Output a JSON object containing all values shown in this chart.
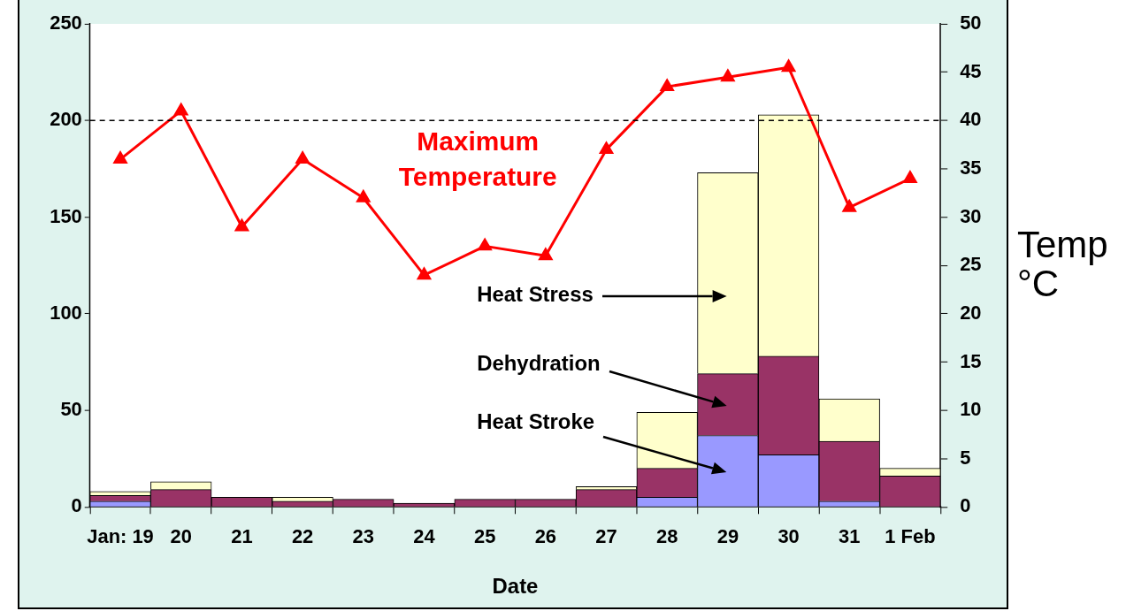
{
  "chart_data": {
    "type": "bar",
    "stacked": true,
    "xlabel": "Date",
    "y2label": "Temp °C",
    "categories": [
      "Jan: 19",
      "20",
      "21",
      "22",
      "23",
      "24",
      "25",
      "26",
      "27",
      "28",
      "29",
      "30",
      "31",
      "1 Feb"
    ],
    "series": [
      {
        "name": "Heat Stroke",
        "color": "#9999ff",
        "values": [
          3,
          0,
          0,
          0,
          0,
          0,
          0,
          0,
          0,
          5,
          37,
          27,
          3,
          0
        ]
      },
      {
        "name": "Dehydration",
        "color": "#993366",
        "values": [
          3,
          9,
          5,
          3,
          4,
          2,
          4,
          4,
          9,
          15,
          32,
          51,
          31,
          16
        ]
      },
      {
        "name": "Heat Stress",
        "color": "#ffffcc",
        "values": [
          2,
          4,
          0,
          2,
          0,
          0,
          0,
          0,
          1.5,
          29,
          104,
          125,
          22,
          4
        ]
      },
      {
        "name": "Maximum Temperature",
        "type": "line",
        "axis": "y2",
        "color": "#ff0000",
        "values": [
          36,
          41,
          29,
          36,
          32,
          24,
          27,
          26,
          37,
          43.5,
          44.5,
          45.5,
          31,
          34
        ]
      }
    ],
    "ylim": [
      0,
      250
    ],
    "yticks": [
      0,
      50,
      100,
      150,
      200,
      250
    ],
    "y2lim": [
      0,
      50
    ],
    "y2ticks": [
      0,
      5,
      10,
      15,
      20,
      25,
      30,
      35,
      40,
      45,
      50
    ],
    "ref_lines": [
      {
        "axis": "y",
        "value": 200,
        "color": "#000000",
        "line_style": "dashed"
      }
    ],
    "marker": "triangle",
    "line_style": "solid",
    "grid": false,
    "legend": false
  }
}
